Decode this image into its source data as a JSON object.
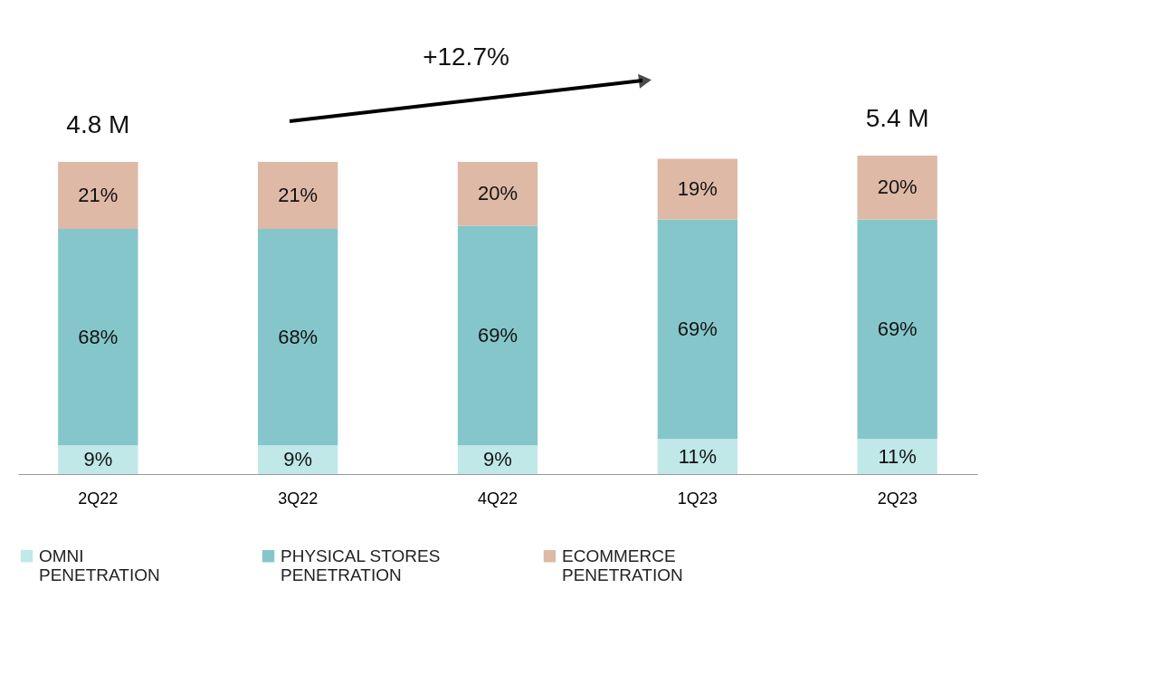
{
  "chart_data": {
    "type": "bar",
    "stacked": true,
    "categories": [
      "2Q22",
      "3Q22",
      "4Q22",
      "1Q23",
      "2Q23"
    ],
    "series": [
      {
        "name": "OMNI PENETRATION",
        "color": "#c0e8e8",
        "values": [
          9,
          9,
          9,
          11,
          11
        ],
        "value_labels": [
          "9%",
          "9%",
          "9%",
          "11%",
          "11%"
        ]
      },
      {
        "name": "PHYSICAL STORES PENETRATION",
        "color": "#85c6ca",
        "values": [
          68,
          68,
          69,
          69,
          69
        ],
        "value_labels": [
          "68%",
          "68%",
          "69%",
          "69%",
          "69%"
        ]
      },
      {
        "name": "ECOMMERCE PENETRATION",
        "color": "#deb9a6",
        "values": [
          21,
          21,
          20,
          19,
          20
        ],
        "value_labels": [
          "21%",
          "21%",
          "20%",
          "19%",
          "20%"
        ]
      }
    ],
    "annotations": [
      "+12.7%",
      {
        "text": "4.8 M",
        "x": "2Q22",
        "y": 98
      },
      {
        "text": "5.4 M",
        "x": "2Q23",
        "y": 100
      }
    ],
    "legend": "bottom",
    "tick_labels": "x"
  }
}
